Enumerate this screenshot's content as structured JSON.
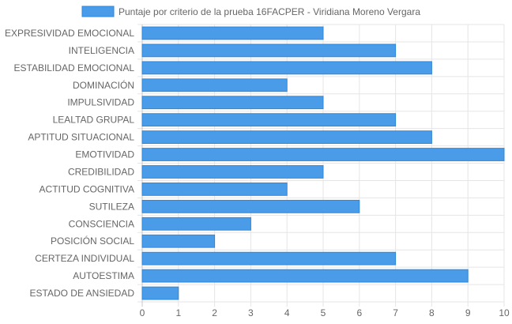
{
  "chart_data": {
    "type": "bar",
    "orientation": "horizontal",
    "categories": [
      "EXPRESIVIDAD EMOCIONAL",
      "INTELIGENCIA",
      "ESTABILIDAD EMOCIONAL",
      "DOMINACIÓN",
      "IMPULSIVIDAD",
      "LEALTAD GRUPAL",
      "APTITUD SITUACIONAL",
      "EMOTIVIDAD",
      "CREDIBILIDAD",
      "ACTITUD COGNITIVA",
      "SUTILEZA",
      "CONSCIENCIA",
      "POSICIÓN SOCIAL",
      "CERTEZA INDIVIDUAL",
      "AUTOESTIMA",
      "ESTADO DE ANSIEDAD"
    ],
    "series": [
      {
        "name": "Puntaje por criterio de la prueba 16FACPER - Viridiana Moreno Vergara",
        "values": [
          5,
          7,
          8,
          4,
          5,
          7,
          8,
          10,
          5,
          4,
          6,
          3,
          2,
          7,
          9,
          1
        ],
        "color": "#4a9ce8",
        "border_color": "#2f86d9"
      }
    ],
    "xlim": [
      0,
      10
    ],
    "x_ticks": [
      "0",
      "1",
      "2",
      "3",
      "4",
      "5",
      "6",
      "7",
      "8",
      "9",
      "10"
    ],
    "grid": true,
    "legend_position": "top"
  }
}
